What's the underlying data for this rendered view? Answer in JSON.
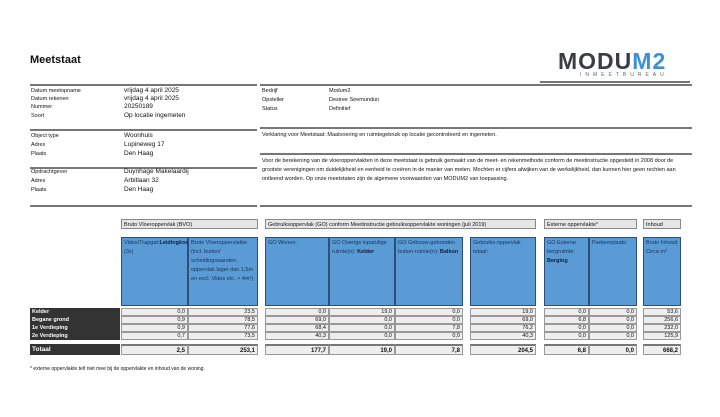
{
  "title": "Meetstaat",
  "logo": {
    "main": "MODU",
    "accent": "M2",
    "sub": "INMEETBUREAU"
  },
  "info_left": [
    {
      "label": "Datum meetopname",
      "value": "vrijdag 4 april 2025"
    },
    {
      "label": "Datum rekenen",
      "value": "vrijdag 4 april 2025"
    },
    {
      "label": "Nummer",
      "value": "20250189"
    },
    {
      "label": "Soort",
      "value": "Op locatie ingemeten"
    },
    {
      "label": "Object type",
      "value": "Woonhuis"
    },
    {
      "label": "Adres",
      "value": "Lupineweg 17"
    },
    {
      "label": "Plaats",
      "value": "Den Haag"
    },
    {
      "label": "Opdrachtgever",
      "value": "Duynhage Makelaardij"
    },
    {
      "label": "Adres",
      "value": "Arbitlaan 32"
    },
    {
      "label": "Plaats",
      "value": "Den Haag"
    }
  ],
  "info_right": [
    {
      "label": "Bedrijf",
      "value": "Modum2"
    },
    {
      "label": "Opsteller",
      "value": "Desiree Seemundun"
    },
    {
      "label": "Status",
      "value": "Definitief"
    }
  ],
  "verklaring": "Verklaring voor Meetstaat: Maatvoering en ruimtegebruik op locatie gecontroleerd en ingemeten.",
  "disclaimer": "Voor de berekening van de vloeroppervlakten in deze meetstaat is gebruik gemaakt van de meet- en rekenmethode conform de meetinstructie opgesteld in 2008 door de grootste verenigingen om duidelijkheid en eenheid te creëren in de manier van meten. Mochten er cijfers afwijken van de werkelijkheid, dan kunnen hier geen rechten aan ontleend worden. Op onze meetstaten zijn de algemene voorwaarden van MODUM2 van toepassing.",
  "groups": [
    "Bruto Vloeroppervlak (BVO)",
    "Gebruiksoppervlak (GO) conform Meetinstructie gebruiksoppervlakte woningen (juli 2019)",
    "Externe oppervlakte*",
    "Inhoud"
  ],
  "columns": [
    {
      "text": "Vides/Trapgat:",
      "bold": "Leidingkoof",
      "after": " (3x)"
    },
    {
      "text": "Bruto Vloeroppervlakte (incl. buiten/ scheidingswanden, oppervlak lager dan 1,5m en excl. Vides etc. > 4m²)",
      "bold": "",
      "after": ""
    },
    {
      "text": "GO Wonen:",
      "bold": "",
      "after": ""
    },
    {
      "text": "GO Overige inpandige ruimte(n): ",
      "bold": "Kelder",
      "after": ""
    },
    {
      "text": "GO Gebouw-gebonden buiten-ruimte(n): ",
      "bold": "Balkon",
      "after": ""
    },
    {
      "text": "Gebruiks-oppervlak totaal:",
      "bold": "",
      "after": ""
    },
    {
      "text": "GO Externe bergruimte: ",
      "bold": "Berging",
      "after": ""
    },
    {
      "text": "Parkeerplaats:",
      "bold": "",
      "after": ""
    },
    {
      "text": "Bruto Inhoud Circa m³",
      "bold": "",
      "after": ""
    }
  ],
  "rows": [
    {
      "label": "Kelder",
      "values": [
        "0,0",
        "23,5",
        "0,0",
        "19,0",
        "0,0",
        "19,0",
        "0,0",
        "0,0",
        "53,6"
      ]
    },
    {
      "label": "Begane grond",
      "values": [
        "0,9",
        "78,5",
        "69,0",
        "0,0",
        "0,0",
        "69,0",
        "6,8",
        "0,0",
        "256,6"
      ]
    },
    {
      "label": "1e Verdieping",
      "values": [
        "0,9",
        "77,6",
        "68,4",
        "0,0",
        "7,8",
        "76,2",
        "0,0",
        "0,0",
        "232,0"
      ]
    },
    {
      "label": "2e Verdieping",
      "values": [
        "0,7",
        "73,5",
        "40,3",
        "0,0",
        "0,0",
        "40,3",
        "0,0",
        "0,0",
        "125,9"
      ]
    }
  ],
  "total": {
    "label": "Totaal",
    "values": [
      "2,5",
      "253,1",
      "177,7",
      "19,0",
      "7,8",
      "204,5",
      "6,8",
      "0,0",
      "668,2"
    ]
  },
  "footnote": "* externe oppervlakte telt niet mee bij de oppervlakte en inhoud van de woning."
}
